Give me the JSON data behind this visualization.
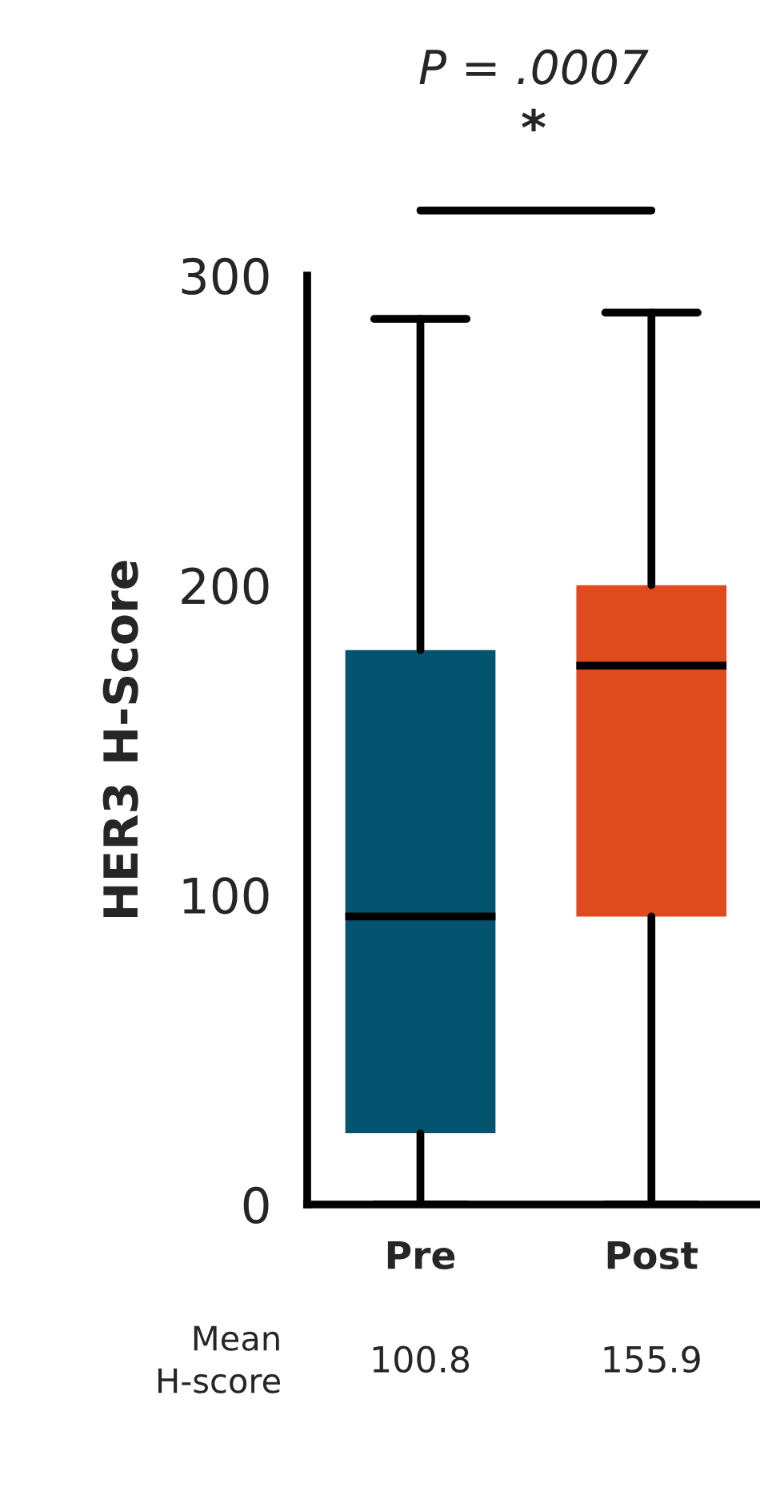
{
  "chart_data": {
    "type": "box",
    "ylabel": "HER3 H-Score",
    "categories": [
      "Pre",
      "Post"
    ],
    "series": [
      {
        "color": "#045470",
        "boxes": [
          {
            "low": 0,
            "q1": 23,
            "median": 93,
            "q3": 179,
            "high": 286
          },
          null
        ]
      },
      {
        "color": "#e04a1f",
        "boxes": [
          null,
          {
            "low": 0,
            "q1": 93,
            "median": 174,
            "q3": 200,
            "high": 288
          }
        ]
      }
    ],
    "ylim": [
      0,
      300
    ],
    "yticks": [
      0,
      100,
      200,
      300
    ],
    "grid": false,
    "legend": false,
    "annotations": [
      "P = .0007",
      "*",
      "Mean\nH-score",
      "100.8",
      "155.9"
    ]
  }
}
